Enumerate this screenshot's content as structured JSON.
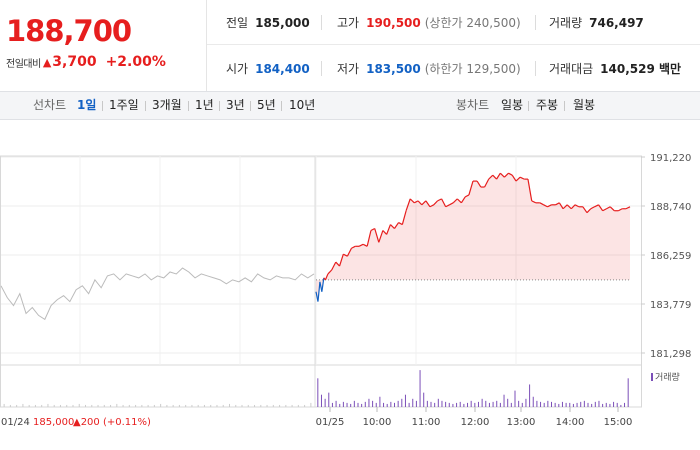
{
  "price": {
    "current": "188,700",
    "change_label": "전일대비",
    "change_arrow": "▲",
    "change_amount": "3,700",
    "change_percent": "+2.00%",
    "up_color": "#e61e1e",
    "down_color": "#1261c4"
  },
  "stats": {
    "prev_close": {
      "label": "전일",
      "value": "185,000"
    },
    "high": {
      "label": "고가",
      "value": "190,500",
      "sub": "(상한가 240,500)"
    },
    "volume": {
      "label": "거래량",
      "value": "746,497"
    },
    "open": {
      "label": "시가",
      "value": "184,400"
    },
    "low": {
      "label": "저가",
      "value": "183,500",
      "sub": "(하한가 129,500)"
    },
    "trade_amount": {
      "label": "거래대금",
      "value": "140,529 백만"
    }
  },
  "periods": {
    "line_label": "선차트",
    "line_items": [
      "1일",
      "1주일",
      "3개월",
      "1년",
      "3년",
      "5년",
      "10년"
    ],
    "active_index": 0,
    "candle_label": "봉차트",
    "candle_items": [
      "일봉",
      "주봉",
      "월봉"
    ]
  },
  "chart_data": {
    "type": "line",
    "y_ticks": [
      "191,220",
      "188,740",
      "186,259",
      "183,779",
      "181,298"
    ],
    "y_range": [
      181298,
      191220
    ],
    "x_labels": [
      "01/25",
      "10:00",
      "11:00",
      "12:00",
      "13:00",
      "14:00",
      "15:00"
    ],
    "prev_day_label": "01/24",
    "prev_day_close": "185,000",
    "prev_day_change": "▲200 (+0.11%)",
    "volume_legend": "거래량",
    "reference_price": 185000,
    "series": [
      {
        "name": "01/24",
        "color": "#bbbbbb",
        "x": [
          0,
          0.02,
          0.04,
          0.06,
          0.08,
          0.1,
          0.12,
          0.14,
          0.16,
          0.18,
          0.2,
          0.22,
          0.24,
          0.26,
          0.28,
          0.3,
          0.32,
          0.34,
          0.36,
          0.38,
          0.4,
          0.42,
          0.44,
          0.46,
          0.48,
          0.5,
          0.52,
          0.54,
          0.56,
          0.58,
          0.6,
          0.62,
          0.64,
          0.66,
          0.68,
          0.7,
          0.72,
          0.74,
          0.76,
          0.78,
          0.8,
          0.82,
          0.84,
          0.86,
          0.88,
          0.9,
          0.92,
          0.94,
          0.96,
          0.98,
          1.0
        ],
        "values": [
          184700,
          184100,
          183700,
          184300,
          183300,
          183600,
          183200,
          183000,
          183700,
          184000,
          184200,
          183900,
          184500,
          184700,
          184300,
          185000,
          184600,
          185200,
          185300,
          185000,
          185300,
          185200,
          185100,
          185300,
          185000,
          185200,
          185100,
          185400,
          185300,
          185600,
          185400,
          185100,
          185300,
          185200,
          185100,
          185000,
          184800,
          185000,
          184900,
          185100,
          184900,
          185300,
          185100,
          185000,
          185200,
          185100,
          185100,
          185000,
          185300,
          185100,
          185300
        ]
      },
      {
        "name": "01/25",
        "x": [
          0,
          0.0063,
          0.0125,
          0.0187,
          0.025,
          0.03,
          0.038,
          0.05,
          0.063,
          0.075,
          0.087,
          0.1,
          0.113,
          0.125,
          0.137,
          0.15,
          0.163,
          0.175,
          0.187,
          0.2,
          0.213,
          0.225,
          0.237,
          0.25,
          0.263,
          0.275,
          0.287,
          0.3,
          0.313,
          0.325,
          0.337,
          0.35,
          0.363,
          0.375,
          0.387,
          0.4,
          0.413,
          0.425,
          0.437,
          0.45,
          0.463,
          0.475,
          0.487,
          0.5,
          0.513,
          0.525,
          0.537,
          0.55,
          0.563,
          0.575,
          0.587,
          0.6,
          0.613,
          0.625,
          0.637,
          0.65,
          0.663,
          0.675,
          0.687,
          0.7,
          0.713,
          0.725,
          0.737,
          0.75,
          0.763,
          0.775,
          0.787,
          0.8,
          0.813,
          0.825,
          0.837,
          0.85,
          0.863,
          0.875,
          0.887,
          0.9,
          0.913,
          0.925,
          0.937,
          0.95,
          0.963,
          0.975,
          0.987,
          1.0
        ],
        "values": [
          184400,
          183900,
          184900,
          184400,
          185100,
          185000,
          185300,
          185500,
          185900,
          185700,
          186300,
          186200,
          186600,
          186700,
          186700,
          186800,
          186700,
          187500,
          187600,
          186900,
          187500,
          187300,
          187800,
          187600,
          187900,
          187800,
          188500,
          189100,
          188900,
          189000,
          188800,
          189000,
          188700,
          188800,
          189000,
          189100,
          188700,
          188800,
          188900,
          189100,
          188900,
          189200,
          189300,
          190000,
          190000,
          189700,
          189700,
          190100,
          190300,
          190100,
          190400,
          190200,
          190400,
          190300,
          190000,
          190200,
          190100,
          190100,
          189000,
          188900,
          188900,
          188800,
          188700,
          188800,
          188800,
          188900,
          188600,
          188800,
          188600,
          188800,
          188700,
          188700,
          188400,
          188600,
          188700,
          188800,
          188500,
          188600,
          188700,
          188500,
          188500,
          188600,
          188600,
          188700
        ]
      }
    ],
    "volume": {
      "prev_day": [
        3,
        2,
        2,
        3,
        2,
        2,
        2,
        3,
        2,
        2,
        2,
        2,
        3,
        2,
        2,
        2,
        2,
        2,
        3,
        2,
        2,
        2,
        2,
        2,
        2,
        3,
        2,
        2,
        2,
        2,
        2,
        2,
        2,
        2,
        2,
        2,
        3,
        2,
        2,
        2,
        2,
        2,
        2,
        2,
        2,
        2,
        2,
        2,
        2,
        4
      ],
      "today": [
        28,
        12,
        8,
        14,
        4,
        6,
        3,
        5,
        4,
        3,
        6,
        4,
        3,
        5,
        8,
        6,
        4,
        10,
        4,
        3,
        5,
        4,
        6,
        8,
        12,
        4,
        8,
        6,
        36,
        14,
        6,
        5,
        4,
        8,
        6,
        5,
        4,
        3,
        4,
        5,
        3,
        4,
        6,
        4,
        5,
        8,
        6,
        4,
        5,
        6,
        4,
        12,
        8,
        4,
        16,
        6,
        4,
        8,
        22,
        10,
        6,
        5,
        4,
        6,
        5,
        4,
        3,
        5,
        4,
        4,
        3,
        4,
        5,
        6,
        4,
        3,
        5,
        6,
        3,
        4,
        3,
        5,
        4,
        2,
        4,
        28
      ]
    }
  }
}
